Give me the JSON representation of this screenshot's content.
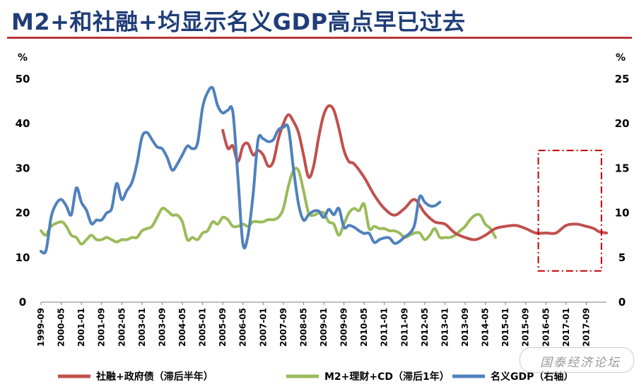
{
  "title": "M2+和社融+均显示名义GDP高点早已过去",
  "watermark": "国泰经济论坛",
  "colors": {
    "title": "#1f3d78",
    "rule": "#b8373a",
    "series_red": "#c0504d",
    "series_green": "#9bbb59",
    "series_blue": "#4f81bd",
    "highlight_box": "#c00000"
  },
  "chart_data": {
    "type": "line",
    "left_unit": "%",
    "right_unit": "%",
    "y_left_ticks": [
      "0",
      "10",
      "20",
      "30",
      "40",
      "50"
    ],
    "y_right_ticks": [
      "0",
      "5",
      "10",
      "15",
      "20",
      "25"
    ],
    "ylim_left": [
      0,
      50
    ],
    "ylim_right": [
      0,
      25
    ],
    "x_tick_labels": [
      "1999-09",
      "2000-05",
      "2001-01",
      "2001-09",
      "2002-05",
      "2003-01",
      "2003-09",
      "2004-05",
      "2005-01",
      "2005-09",
      "2006-05",
      "2007-01",
      "2007-09",
      "2008-05",
      "2009-01",
      "2009-09",
      "2010-05",
      "2011-01",
      "2011-09",
      "2012-05",
      "2013-01",
      "2013-09",
      "2014-05",
      "2015-01",
      "2015-09",
      "2016-05",
      "2017-01",
      "2017-09"
    ],
    "legend_position": "bottom",
    "grid": false,
    "highlight_box": {
      "x_from": "2016-02",
      "x_to": "2018-03",
      "y_from": 3.5,
      "y_to": 17,
      "axis": "right"
    },
    "series": [
      {
        "name": "社融+政府债（滞后半年）",
        "axis": "left",
        "color": "#c0504d",
        "points": [
          [
            "2005-09",
            38.5
          ],
          [
            "2005-11",
            34.5
          ],
          [
            "2006-01",
            35
          ],
          [
            "2006-03",
            31.5
          ],
          [
            "2006-05",
            35
          ],
          [
            "2006-07",
            35.5
          ],
          [
            "2006-09",
            33
          ],
          [
            "2006-11",
            34
          ],
          [
            "2007-01",
            33
          ],
          [
            "2007-03",
            30.5
          ],
          [
            "2007-05",
            31.5
          ],
          [
            "2007-07",
            36.5
          ],
          [
            "2007-09",
            40
          ],
          [
            "2007-11",
            42
          ],
          [
            "2008-01",
            40.5
          ],
          [
            "2008-03",
            38
          ],
          [
            "2008-05",
            33
          ],
          [
            "2008-07",
            28
          ],
          [
            "2008-09",
            30.5
          ],
          [
            "2008-11",
            37
          ],
          [
            "2009-01",
            42
          ],
          [
            "2009-03",
            44
          ],
          [
            "2009-05",
            43
          ],
          [
            "2009-07",
            39
          ],
          [
            "2009-09",
            34
          ],
          [
            "2009-11",
            31.5
          ],
          [
            "2010-01",
            31
          ],
          [
            "2010-05",
            28
          ],
          [
            "2010-09",
            24
          ],
          [
            "2011-01",
            21
          ],
          [
            "2011-05",
            19.5
          ],
          [
            "2011-09",
            21
          ],
          [
            "2012-01",
            23
          ],
          [
            "2012-05",
            20
          ],
          [
            "2012-09",
            18
          ],
          [
            "2013-01",
            17.5
          ],
          [
            "2013-05",
            15.5
          ],
          [
            "2013-09",
            14.5
          ],
          [
            "2014-01",
            14
          ],
          [
            "2014-05",
            15
          ],
          [
            "2014-09",
            16.5
          ],
          [
            "2015-01",
            17
          ],
          [
            "2015-05",
            17.2
          ],
          [
            "2015-09",
            16.5
          ],
          [
            "2016-01",
            15.5
          ],
          [
            "2016-05",
            15.5
          ],
          [
            "2016-09",
            15.5
          ],
          [
            "2017-01",
            17.2
          ],
          [
            "2017-05",
            17.5
          ],
          [
            "2017-09",
            17
          ],
          [
            "2017-12",
            16.5
          ],
          [
            "2018-02",
            15.8
          ],
          [
            "2018-05",
            15.5
          ]
        ]
      },
      {
        "name": "M2+理财+CD（滞后1年）",
        "axis": "left",
        "color": "#9bbb59",
        "points": [
          [
            "1999-09",
            16
          ],
          [
            "1999-11",
            15
          ],
          [
            "2000-01",
            17
          ],
          [
            "2000-05",
            18
          ],
          [
            "2000-07",
            17
          ],
          [
            "2000-09",
            15
          ],
          [
            "2000-11",
            14.5
          ],
          [
            "2001-01",
            13
          ],
          [
            "2001-03",
            14
          ],
          [
            "2001-05",
            15
          ],
          [
            "2001-07",
            14
          ],
          [
            "2001-09",
            14
          ],
          [
            "2001-11",
            14.5
          ],
          [
            "2002-01",
            14
          ],
          [
            "2002-03",
            13.5
          ],
          [
            "2002-05",
            14
          ],
          [
            "2002-07",
            14
          ],
          [
            "2002-09",
            14.5
          ],
          [
            "2002-11",
            14.5
          ],
          [
            "2003-01",
            16
          ],
          [
            "2003-03",
            16.5
          ],
          [
            "2003-05",
            17
          ],
          [
            "2003-07",
            19
          ],
          [
            "2003-09",
            21
          ],
          [
            "2003-11",
            20.5
          ],
          [
            "2004-01",
            19.5
          ],
          [
            "2004-03",
            19.5
          ],
          [
            "2004-05",
            18
          ],
          [
            "2004-07",
            14
          ],
          [
            "2004-09",
            14.5
          ],
          [
            "2004-11",
            14
          ],
          [
            "2005-01",
            15.5
          ],
          [
            "2005-03",
            16
          ],
          [
            "2005-05",
            18
          ],
          [
            "2005-07",
            17.5
          ],
          [
            "2005-09",
            19
          ],
          [
            "2005-11",
            18.5
          ],
          [
            "2006-01",
            17
          ],
          [
            "2006-03",
            17
          ],
          [
            "2006-05",
            17.5
          ],
          [
            "2006-07",
            17
          ],
          [
            "2006-09",
            18
          ],
          [
            "2006-11",
            18
          ],
          [
            "2007-01",
            18
          ],
          [
            "2007-03",
            18.5
          ],
          [
            "2007-05",
            18.5
          ],
          [
            "2007-07",
            19
          ],
          [
            "2007-09",
            21
          ],
          [
            "2007-11",
            26
          ],
          [
            "2008-01",
            29.5
          ],
          [
            "2008-03",
            29.5
          ],
          [
            "2008-05",
            25
          ],
          [
            "2008-07",
            20
          ],
          [
            "2008-09",
            19.5
          ],
          [
            "2008-11",
            20
          ],
          [
            "2009-01",
            20
          ],
          [
            "2009-03",
            18
          ],
          [
            "2009-05",
            17.5
          ],
          [
            "2009-07",
            15
          ],
          [
            "2009-09",
            17.5
          ],
          [
            "2009-11",
            20
          ],
          [
            "2010-01",
            21
          ],
          [
            "2010-03",
            20.5
          ],
          [
            "2010-05",
            22
          ],
          [
            "2010-07",
            16.5
          ],
          [
            "2010-09",
            17
          ],
          [
            "2010-11",
            16.5
          ],
          [
            "2011-01",
            16.5
          ],
          [
            "2011-03",
            16
          ],
          [
            "2011-05",
            16
          ],
          [
            "2011-07",
            15.5
          ],
          [
            "2011-09",
            14.5
          ],
          [
            "2011-11",
            15
          ],
          [
            "2012-01",
            15.5
          ],
          [
            "2012-03",
            15.5
          ],
          [
            "2012-05",
            14
          ],
          [
            "2012-07",
            15
          ],
          [
            "2012-09",
            16.5
          ],
          [
            "2012-11",
            14.5
          ],
          [
            "2013-01",
            14.5
          ],
          [
            "2013-03",
            14.5
          ],
          [
            "2013-05",
            15
          ],
          [
            "2013-07",
            16
          ],
          [
            "2013-09",
            17
          ],
          [
            "2013-11",
            18.5
          ],
          [
            "2014-01",
            19.5
          ],
          [
            "2014-03",
            19.5
          ],
          [
            "2014-05",
            17.5
          ],
          [
            "2014-07",
            16.5
          ],
          [
            "2014-09",
            14.5
          ]
        ]
      },
      {
        "name": "名义GDP（右轴）",
        "axis": "right",
        "color": "#4f81bd",
        "points": [
          [
            "1999-09",
            5.7
          ],
          [
            "1999-11",
            5.8
          ],
          [
            "2000-01",
            9.5
          ],
          [
            "2000-03",
            11
          ],
          [
            "2000-05",
            11.5
          ],
          [
            "2000-07",
            10.8
          ],
          [
            "2000-09",
            9.8
          ],
          [
            "2000-11",
            12.8
          ],
          [
            "2001-01",
            11.2
          ],
          [
            "2001-03",
            10.3
          ],
          [
            "2001-05",
            8.8
          ],
          [
            "2001-07",
            9.2
          ],
          [
            "2001-09",
            9.2
          ],
          [
            "2001-11",
            10
          ],
          [
            "2002-01",
            10.5
          ],
          [
            "2002-03",
            13.3
          ],
          [
            "2002-05",
            11.5
          ],
          [
            "2002-07",
            12.5
          ],
          [
            "2002-09",
            13.4
          ],
          [
            "2002-11",
            15.5
          ],
          [
            "2003-01",
            18.5
          ],
          [
            "2003-03",
            19
          ],
          [
            "2003-05",
            18.2
          ],
          [
            "2003-07",
            17.4
          ],
          [
            "2003-09",
            17.2
          ],
          [
            "2003-11",
            16.2
          ],
          [
            "2004-01",
            14.8
          ],
          [
            "2004-03",
            15.5
          ],
          [
            "2004-05",
            16.5
          ],
          [
            "2004-07",
            17.5
          ],
          [
            "2004-09",
            17.2
          ],
          [
            "2004-11",
            17.8
          ],
          [
            "2005-01",
            21.8
          ],
          [
            "2005-03",
            23.5
          ],
          [
            "2005-05",
            24
          ],
          [
            "2005-07",
            22
          ],
          [
            "2005-09",
            21.2
          ],
          [
            "2005-11",
            21.5
          ],
          [
            "2006-01",
            21.3
          ],
          [
            "2006-03",
            14
          ],
          [
            "2006-05",
            6.5
          ],
          [
            "2006-07",
            7.5
          ],
          [
            "2006-09",
            12
          ],
          [
            "2006-11",
            18.2
          ],
          [
            "2007-01",
            18.3
          ],
          [
            "2007-03",
            18
          ],
          [
            "2007-05",
            18.2
          ],
          [
            "2007-07",
            19.3
          ],
          [
            "2007-09",
            19.6
          ],
          [
            "2007-11",
            19.5
          ],
          [
            "2008-01",
            15
          ],
          [
            "2008-03",
            11
          ],
          [
            "2008-05",
            9.2
          ],
          [
            "2008-07",
            9.8
          ],
          [
            "2008-09",
            10.2
          ],
          [
            "2008-11",
            10.2
          ],
          [
            "2009-01",
            9.5
          ],
          [
            "2009-03",
            10.4
          ],
          [
            "2009-05",
            9.8
          ],
          [
            "2009-07",
            10.5
          ],
          [
            "2009-09",
            8.4
          ],
          [
            "2009-11",
            8.6
          ],
          [
            "2010-01",
            8.4
          ],
          [
            "2010-03",
            8
          ],
          [
            "2010-05",
            7.7
          ],
          [
            "2010-07",
            7.7
          ],
          [
            "2010-09",
            6.7
          ],
          [
            "2010-11",
            7
          ],
          [
            "2011-01",
            7.2
          ],
          [
            "2011-03",
            7.2
          ],
          [
            "2011-05",
            6.6
          ],
          [
            "2011-07",
            6.8
          ],
          [
            "2011-09",
            7.3
          ],
          [
            "2011-11",
            7.7
          ],
          [
            "2012-01",
            8.7
          ],
          [
            "2012-03",
            11.8
          ],
          [
            "2012-05",
            11.2
          ],
          [
            "2012-07",
            10.8
          ],
          [
            "2012-09",
            10.8
          ],
          [
            "2012-11",
            11.2
          ]
        ]
      }
    ]
  }
}
